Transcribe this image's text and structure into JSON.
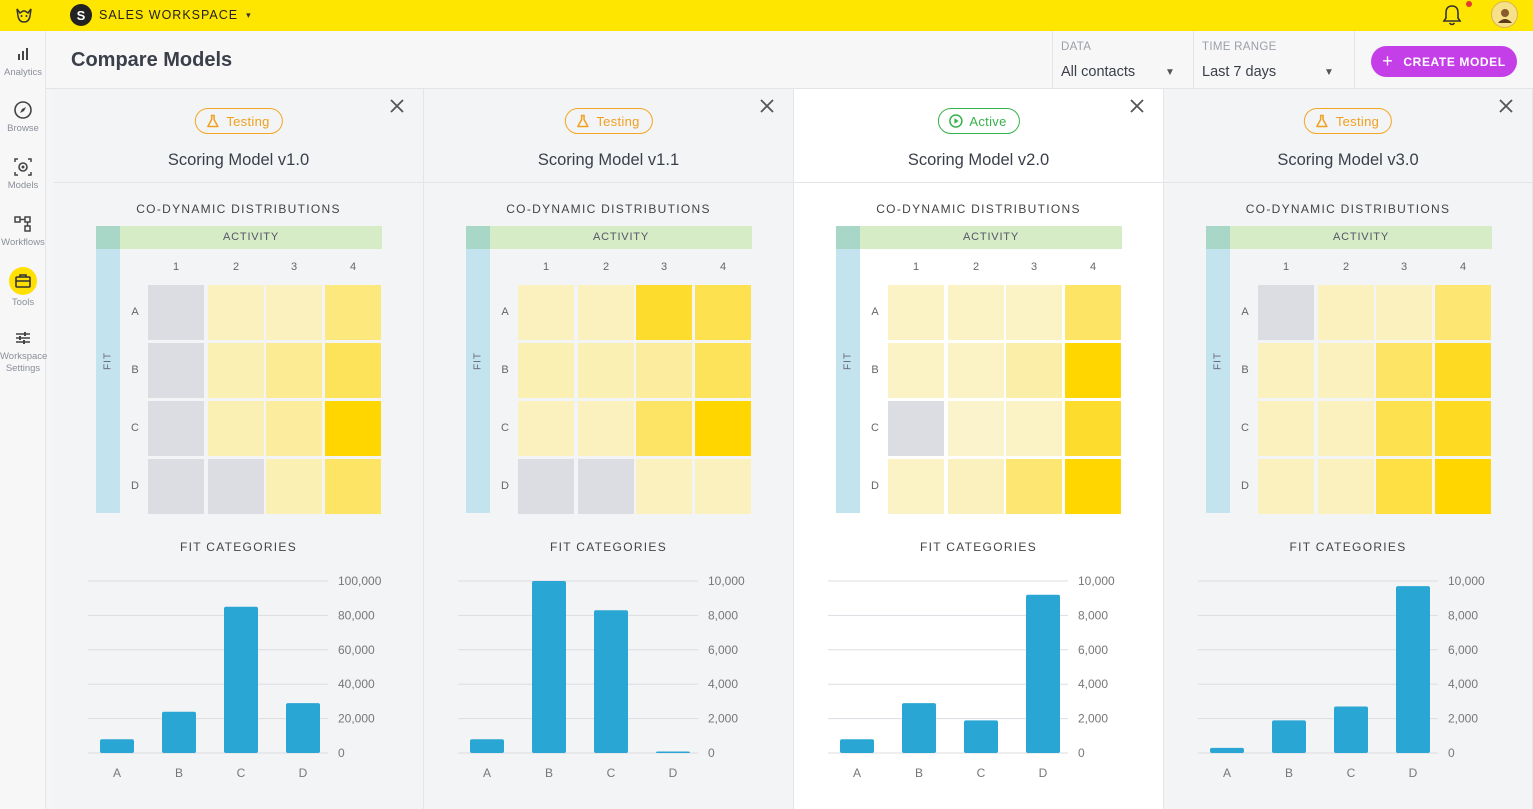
{
  "topbar": {
    "logo_icon": "cat-mascot-icon",
    "workspace_initial": "S",
    "workspace_name": "SALES WORKSPACE",
    "caret": "▾",
    "bell_icon": "bell-icon",
    "avatar_icon": "user-avatar"
  },
  "sidebar": {
    "items": [
      {
        "label": "Analytics",
        "icon": "bar-chart-icon"
      },
      {
        "label": "Browse",
        "icon": "compass-icon"
      },
      {
        "label": "Models",
        "icon": "model-icon"
      },
      {
        "label": "Workflows",
        "icon": "workflow-icon"
      },
      {
        "label": "Tools",
        "icon": "toolbox-icon"
      },
      {
        "label": "Workspace Settings",
        "icon": "sliders-icon"
      }
    ]
  },
  "header": {
    "title": "Compare Models",
    "data_filter": {
      "label": "DATA",
      "value": "All contacts"
    },
    "time_filter": {
      "label": "TIME RANGE",
      "value": "Last 7 days"
    },
    "create_button": {
      "plus": "+",
      "label": "CREATE MODEL"
    }
  },
  "colors": {
    "brand_yellow": "#ffe600",
    "create_button": "#c53fe8",
    "testing_badge": "#f5a623",
    "active_badge": "#36b24a",
    "bar": "#29a6d3",
    "heat_gray": "#dcdde2"
  },
  "section_titles": {
    "distributions": "CO-DYNAMIC DISTRIBUTIONS",
    "activity": "ACTIVITY",
    "fit": "FIT",
    "fit_categories": "FIT CATEGORIES"
  },
  "heat_columns": [
    "1",
    "2",
    "3",
    "4"
  ],
  "heat_rows": [
    "A",
    "B",
    "C",
    "D"
  ],
  "panels": [
    {
      "status": "Testing",
      "status_icon": "flask-icon",
      "name": "Scoring Model v1.0",
      "active": false,
      "heat": [
        [
          "gray",
          0.15,
          0.15,
          0.45
        ],
        [
          "gray",
          0.2,
          0.35,
          0.6
        ],
        [
          "gray",
          0.2,
          0.3,
          1.0
        ],
        [
          "gray",
          "gray",
          0.2,
          0.55
        ]
      ],
      "chart_data": {
        "type": "bar",
        "categories": [
          "A",
          "B",
          "C",
          "D"
        ],
        "values": [
          8000,
          24000,
          85000,
          29000
        ],
        "ylim": [
          0,
          100000
        ],
        "yticks": [
          "100,000",
          "80,000",
          "60,000",
          "40,000",
          "20,000",
          "0"
        ]
      }
    },
    {
      "status": "Testing",
      "status_icon": "flask-icon",
      "name": "Scoring Model v1.1",
      "active": false,
      "heat": [
        [
          0.15,
          0.15,
          0.8,
          0.65
        ],
        [
          0.2,
          0.2,
          0.3,
          0.6
        ],
        [
          0.15,
          0.15,
          0.55,
          1.0
        ],
        [
          "gray",
          "gray",
          0.15,
          0.15
        ]
      ],
      "chart_data": {
        "type": "bar",
        "categories": [
          "A",
          "B",
          "C",
          "D"
        ],
        "values": [
          800,
          10000,
          8300,
          50
        ],
        "ylim": [
          0,
          10000
        ],
        "yticks": [
          "10,000",
          "8,000",
          "6,000",
          "4,000",
          "2,000",
          "0"
        ]
      }
    },
    {
      "status": "Active",
      "status_icon": "play-circle-icon",
      "name": "Scoring Model v2.0",
      "active": true,
      "heat": [
        [
          0.12,
          0.12,
          0.12,
          0.55
        ],
        [
          0.12,
          0.12,
          0.25,
          1.0
        ],
        [
          "gray",
          0.1,
          0.12,
          0.8
        ],
        [
          0.12,
          0.15,
          0.5,
          1.0
        ]
      ],
      "chart_data": {
        "type": "bar",
        "categories": [
          "A",
          "B",
          "C",
          "D"
        ],
        "values": [
          800,
          2900,
          1900,
          9200
        ],
        "ylim": [
          0,
          10000
        ],
        "yticks": [
          "10,000",
          "8,000",
          "6,000",
          "4,000",
          "2,000",
          "0"
        ]
      }
    },
    {
      "status": "Testing",
      "status_icon": "flask-icon",
      "name": "Scoring Model v3.0",
      "active": false,
      "heat": [
        [
          "gray",
          0.15,
          0.15,
          0.5
        ],
        [
          0.15,
          0.15,
          0.55,
          0.85
        ],
        [
          0.15,
          0.15,
          0.65,
          0.85
        ],
        [
          0.15,
          0.15,
          0.7,
          1.0
        ]
      ],
      "chart_data": {
        "type": "bar",
        "categories": [
          "A",
          "B",
          "C",
          "D"
        ],
        "values": [
          300,
          1900,
          2700,
          9700
        ],
        "ylim": [
          0,
          10000
        ],
        "yticks": [
          "10,000",
          "8,000",
          "6,000",
          "4,000",
          "2,000",
          "0"
        ]
      }
    }
  ]
}
